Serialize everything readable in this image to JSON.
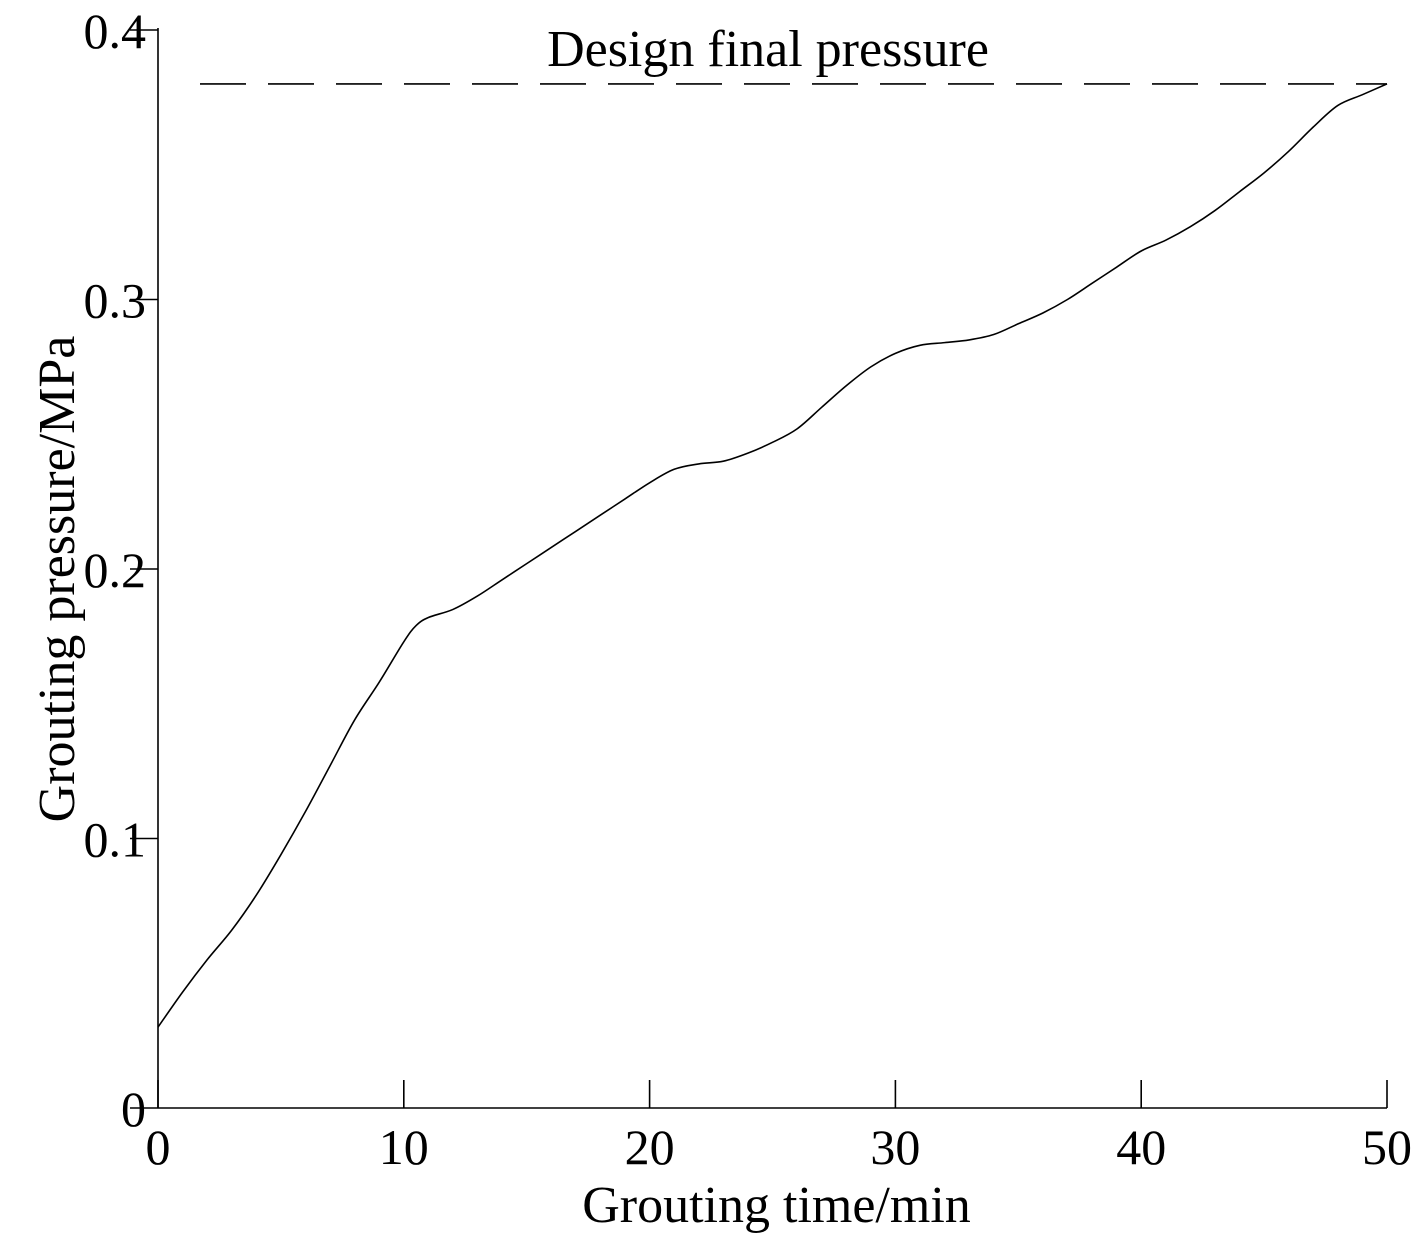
{
  "chart_data": {
    "type": "line",
    "xlabel": "Grouting time/min",
    "ylabel": "Grouting pressure/MPa",
    "xlim": [
      0,
      50
    ],
    "ylim": [
      0,
      0.4
    ],
    "xticks": [
      "0",
      "10",
      "20",
      "30",
      "40",
      "50"
    ],
    "yticks": [
      "0",
      "0.1",
      "0.2",
      "0.3",
      "0.4"
    ],
    "grid": false,
    "series": [
      {
        "x": [
          0,
          1,
          2,
          3,
          4,
          5,
          6,
          7,
          8,
          9,
          10,
          10.5,
          11,
          12,
          13,
          14,
          15,
          16,
          17,
          18,
          19,
          20,
          21,
          22,
          23,
          24,
          25,
          26,
          27,
          28,
          29,
          30,
          31,
          32,
          33,
          34,
          35,
          36,
          37,
          38,
          39,
          40,
          41,
          42,
          43,
          44,
          45,
          46,
          47,
          48,
          49,
          50
        ],
        "y": [
          0.03,
          0.043,
          0.055,
          0.066,
          0.079,
          0.094,
          0.11,
          0.127,
          0.144,
          0.158,
          0.173,
          0.179,
          0.182,
          0.185,
          0.19,
          0.196,
          0.202,
          0.208,
          0.214,
          0.22,
          0.226,
          0.232,
          0.237,
          0.239,
          0.24,
          0.243,
          0.247,
          0.252,
          0.26,
          0.268,
          0.275,
          0.28,
          0.283,
          0.284,
          0.285,
          0.287,
          0.291,
          0.295,
          0.3,
          0.306,
          0.312,
          0.318,
          0.322,
          0.327,
          0.333,
          0.34,
          0.347,
          0.355,
          0.364,
          0.372,
          0.376,
          0.38
        ]
      }
    ],
    "reference_line": {
      "y": 0.38,
      "style": "dashed",
      "label": "Design final pressure"
    }
  }
}
